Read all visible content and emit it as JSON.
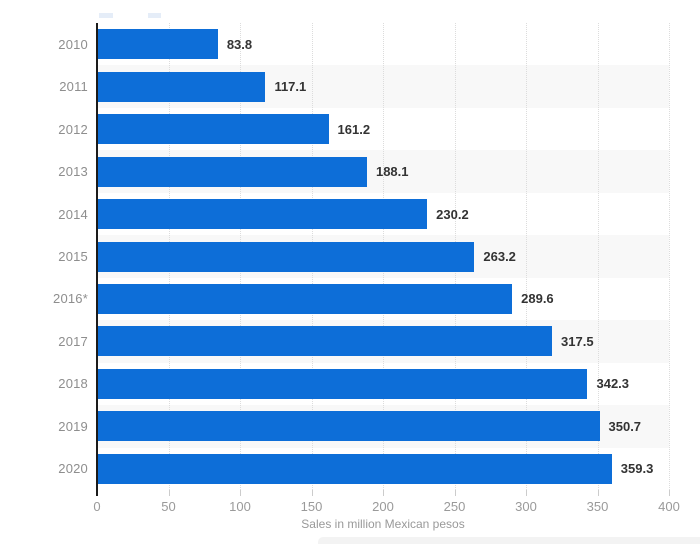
{
  "chart_data": {
    "type": "bar",
    "orientation": "horizontal",
    "categories": [
      "2010",
      "2011",
      "2012",
      "2013",
      "2014",
      "2015",
      "2016*",
      "2017",
      "2018",
      "2019",
      "2020"
    ],
    "values": [
      83.8,
      117.1,
      161.2,
      188.1,
      230.2,
      263.2,
      289.6,
      317.5,
      342.3,
      350.7,
      359.3
    ],
    "value_labels": [
      "83.8",
      "117.1",
      "161.2",
      "188.1",
      "230.2",
      "263.2",
      "289.6",
      "317.5",
      "342.3",
      "350.7",
      "359.3"
    ],
    "title": "",
    "xlabel": "Sales in million Mexican pesos",
    "ylabel": "",
    "xlim": [
      0,
      400
    ],
    "xticks": [
      0,
      50,
      100,
      150,
      200,
      250,
      300,
      350,
      400
    ],
    "grid": "vertical-dotted",
    "legend": null,
    "row_striping": "alternate rows shaded starting with second row",
    "colors": {
      "bar": "#0d6ed8",
      "stripe": "#f8f8f8",
      "gridline": "#dcdcdc",
      "axis_spine": "#1b1b1b",
      "tick": "#cccccc",
      "category_label": "#8e8e8e",
      "value_label": "#333333",
      "tick_label": "#9a9a9a",
      "axis_title": "#999999"
    }
  }
}
